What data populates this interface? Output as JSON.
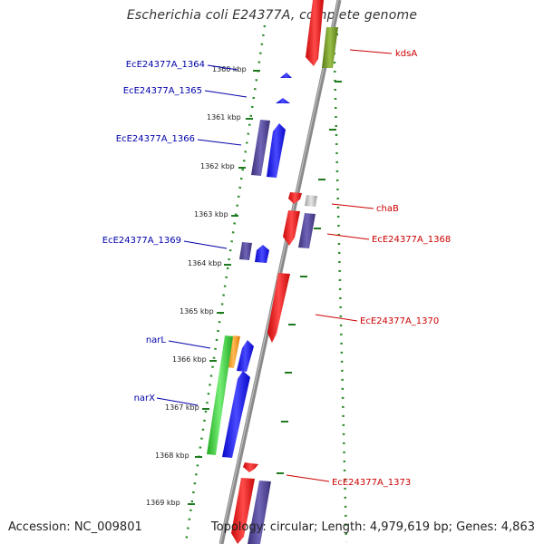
{
  "title": "Escherichia coli E24377A, complete genome",
  "footer": {
    "accession": "Accession: NC_009801",
    "summary": "Topology: circular; Length: 4,979,619 bp; Genes: 4,863"
  },
  "colors": {
    "backbone": "#8a8a8a",
    "tick": "#2a8a2a",
    "forward_label": "#0000aa",
    "reverse_label": "#cc0000",
    "blue": "#1010ee",
    "red": "#ee1111",
    "purple": "#4a3f8f",
    "olive": "#6b8e23",
    "green": "#33cc33",
    "orange": "#ff9900",
    "gray": "#bbbbbb"
  },
  "kbp_labels": [
    "1360 kbp",
    "1361 kbp",
    "1362 kbp",
    "1363 kbp",
    "1364 kbp",
    "1365 kbp",
    "1366 kbp",
    "1367 kbp",
    "1368 kbp",
    "1369 kbp"
  ],
  "forward_labels": [
    {
      "name": "EcE24377A_1364"
    },
    {
      "name": "EcE24377A_1365"
    },
    {
      "name": "EcE24377A_1366"
    },
    {
      "name": "EcE24377A_1369"
    },
    {
      "name": "narL"
    },
    {
      "name": "narX"
    }
  ],
  "reverse_labels": [
    {
      "name": "kdsA"
    },
    {
      "name": "chaB"
    },
    {
      "name": "EcE24377A_1368"
    },
    {
      "name": "EcE24377A_1370"
    },
    {
      "name": "EcE24377A_1373"
    }
  ]
}
